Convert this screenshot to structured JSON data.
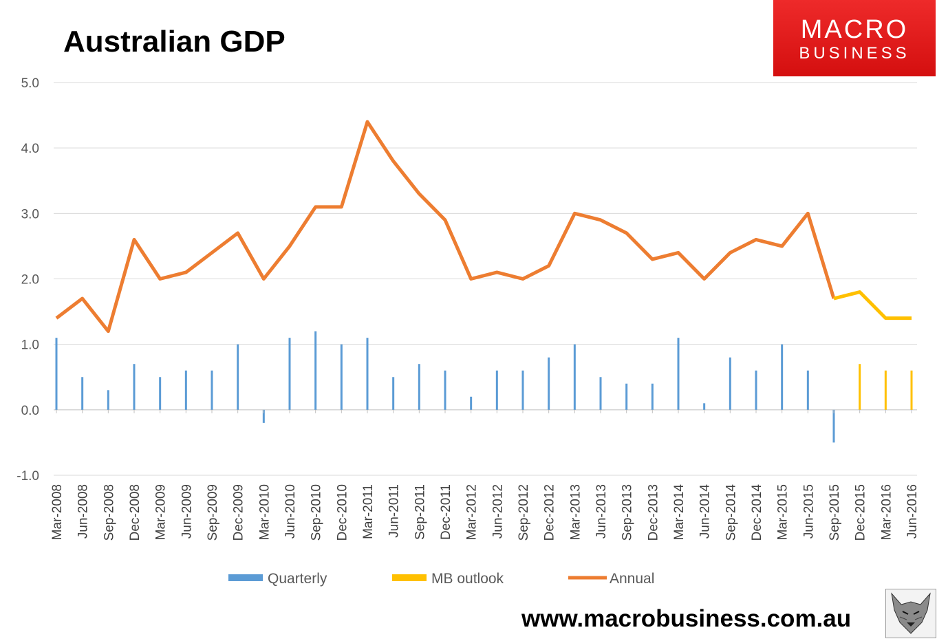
{
  "title": "Australian GDP",
  "logo": {
    "line1": "MACRO",
    "line2": "BUSINESS"
  },
  "footer_url": "www.macrobusiness.com.au",
  "colors": {
    "quarterly": "#5b9bd5",
    "outlook": "#ffc000",
    "annual": "#ed7d31",
    "grid": "#d9d9d9",
    "axis": "#bfbfbf",
    "logo": "#e31b1b"
  },
  "chart_data": {
    "type": "bar+line",
    "title": "Australian GDP",
    "xlabel": "",
    "ylabel": "",
    "ylim": [
      -1.0,
      5.0
    ],
    "yticks": [
      "-1.0",
      "0.0",
      "1.0",
      "2.0",
      "3.0",
      "4.0",
      "5.0"
    ],
    "grid": true,
    "legend_position": "bottom",
    "categories": [
      "Mar-2008",
      "Jun-2008",
      "Sep-2008",
      "Dec-2008",
      "Mar-2009",
      "Jun-2009",
      "Sep-2009",
      "Dec-2009",
      "Mar-2010",
      "Jun-2010",
      "Sep-2010",
      "Dec-2010",
      "Mar-2011",
      "Jun-2011",
      "Sep-2011",
      "Dec-2011",
      "Mar-2012",
      "Jun-2012",
      "Sep-2012",
      "Dec-2012",
      "Mar-2013",
      "Jun-2013",
      "Sep-2013",
      "Dec-2013",
      "Mar-2014",
      "Jun-2014",
      "Sep-2014",
      "Dec-2014",
      "Mar-2015",
      "Jun-2015",
      "Sep-2015",
      "Dec-2015",
      "Mar-2016",
      "Jun-2016"
    ],
    "series": [
      {
        "name": "Quarterly",
        "type": "bar",
        "values": [
          1.1,
          0.5,
          0.3,
          0.7,
          0.5,
          0.6,
          0.6,
          1.0,
          -0.2,
          1.1,
          1.2,
          1.0,
          1.1,
          0.5,
          0.7,
          0.6,
          0.2,
          0.6,
          0.6,
          0.8,
          1.0,
          0.5,
          0.4,
          0.4,
          1.1,
          0.1,
          0.8,
          0.6,
          1.0,
          0.6,
          -0.5,
          null,
          null,
          null
        ]
      },
      {
        "name": "MB outlook",
        "type": "bar+line",
        "values": [
          null,
          null,
          null,
          null,
          null,
          null,
          null,
          null,
          null,
          null,
          null,
          null,
          null,
          null,
          null,
          null,
          null,
          null,
          null,
          null,
          null,
          null,
          null,
          null,
          null,
          null,
          null,
          null,
          null,
          null,
          null,
          0.7,
          0.6,
          0.6
        ],
        "annual_values": [
          null,
          null,
          null,
          null,
          null,
          null,
          null,
          null,
          null,
          null,
          null,
          null,
          null,
          null,
          null,
          null,
          null,
          null,
          null,
          null,
          null,
          null,
          null,
          null,
          null,
          null,
          null,
          null,
          null,
          null,
          1.7,
          1.8,
          1.4,
          1.4
        ]
      },
      {
        "name": "Annual",
        "type": "line",
        "values": [
          1.4,
          1.7,
          1.2,
          2.6,
          2.0,
          2.1,
          2.4,
          2.7,
          2.0,
          2.5,
          3.1,
          3.1,
          4.4,
          3.8,
          3.3,
          2.9,
          2.0,
          2.1,
          2.0,
          2.2,
          3.0,
          2.9,
          2.7,
          2.3,
          2.4,
          2.0,
          2.4,
          2.6,
          2.5,
          3.0,
          1.7,
          null,
          null,
          null
        ]
      }
    ]
  }
}
